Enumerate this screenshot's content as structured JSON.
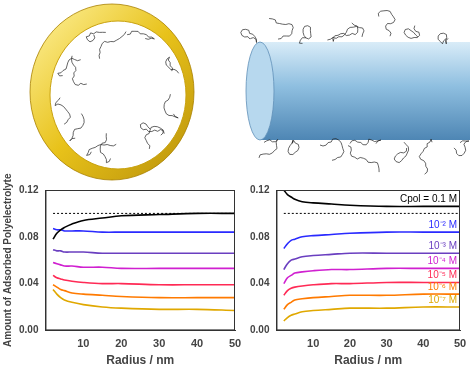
{
  "chart_data": [
    {
      "type": "line",
      "x_label": "Radius / nm",
      "y_label": "Amount of Adsorbed Polyelectrolyte",
      "x": [
        2,
        3,
        4,
        5,
        7,
        10,
        15,
        20,
        30,
        40,
        50
      ],
      "xlim": [
        0,
        50
      ],
      "xticks": [
        10,
        20,
        30,
        40,
        50
      ],
      "ylim": [
        0,
        0.12
      ],
      "yticks": [
        {
          "value": 0,
          "label": "0.00"
        },
        {
          "value": 0.04,
          "label": "0.04"
        },
        {
          "value": 0.08,
          "label": "0.08"
        },
        {
          "value": 0.12,
          "label": "0.12"
        }
      ],
      "grid": false,
      "series": [
        {
          "color": "#000000",
          "line_style": "dotted",
          "values": [
            0.1,
            0.1,
            0.1,
            0.1,
            0.1,
            0.1,
            0.1,
            0.1,
            0.1,
            0.1,
            0.1
          ]
        },
        {
          "color": "#000000",
          "values": [
            0.078,
            0.083,
            0.086,
            0.088,
            0.091,
            0.094,
            0.096,
            0.098,
            0.099,
            0.1,
            0.1
          ]
        },
        {
          "color": "#2a2aff",
          "values": [
            0.087,
            0.086,
            0.086,
            0.085,
            0.085,
            0.085,
            0.084,
            0.084,
            0.084,
            0.084,
            0.084
          ]
        },
        {
          "color": "#6a3fc0",
          "values": [
            0.069,
            0.068,
            0.068,
            0.067,
            0.067,
            0.067,
            0.066,
            0.066,
            0.066,
            0.066,
            0.066
          ]
        },
        {
          "color": "#d020d0",
          "values": [
            0.058,
            0.057,
            0.056,
            0.055,
            0.055,
            0.054,
            0.054,
            0.053,
            0.053,
            0.053,
            0.053
          ]
        },
        {
          "color": "#ff2a55",
          "values": [
            0.047,
            0.045,
            0.044,
            0.043,
            0.042,
            0.041,
            0.04,
            0.04,
            0.039,
            0.039,
            0.039
          ]
        },
        {
          "color": "#ff7a00",
          "values": [
            0.039,
            0.037,
            0.035,
            0.034,
            0.032,
            0.031,
            0.03,
            0.029,
            0.028,
            0.028,
            0.028
          ]
        },
        {
          "color": "#e0a800",
          "values": [
            0.035,
            0.031,
            0.028,
            0.026,
            0.024,
            0.022,
            0.02,
            0.019,
            0.018,
            0.018,
            0.017
          ]
        }
      ]
    },
    {
      "type": "line",
      "x_label": "Radius / nm",
      "x": [
        2,
        3,
        4,
        5,
        7,
        10,
        15,
        20,
        30,
        40,
        50
      ],
      "xlim": [
        0,
        50
      ],
      "xticks": [
        10,
        20,
        30,
        40,
        50
      ],
      "ylim": [
        0,
        0.12
      ],
      "yticks": [
        {
          "value": 0,
          "label": "0.00"
        },
        {
          "value": 0.04,
          "label": "0.04"
        },
        {
          "value": 0.08,
          "label": "0.08"
        },
        {
          "value": 0.12,
          "label": "0.12"
        }
      ],
      "grid": false,
      "series": [
        {
          "color": "#000000",
          "line_style": "dotted",
          "values": [
            0.1,
            0.1,
            0.1,
            0.1,
            0.1,
            0.1,
            0.1,
            0.1,
            0.1,
            0.1,
            0.1
          ]
        },
        {
          "name": "Cpol = 0.1 M",
          "color": "#000000",
          "values": [
            0.12,
            0.116,
            0.114,
            0.112,
            0.11,
            0.109,
            0.108,
            0.107,
            0.106,
            0.106,
            0.106
          ]
        },
        {
          "name": "10⁻² M",
          "color": "#2a2aff",
          "values": [
            0.07,
            0.074,
            0.077,
            0.078,
            0.08,
            0.081,
            0.082,
            0.083,
            0.084,
            0.084,
            0.084
          ]
        },
        {
          "name": "10⁻³ M",
          "color": "#6a3fc0",
          "values": [
            0.052,
            0.057,
            0.06,
            0.061,
            0.063,
            0.064,
            0.065,
            0.066,
            0.066,
            0.066,
            0.066
          ]
        },
        {
          "name": "10⁻⁴ M",
          "color": "#d020d0",
          "values": [
            0.04,
            0.045,
            0.047,
            0.049,
            0.05,
            0.051,
            0.052,
            0.052,
            0.053,
            0.053,
            0.053
          ]
        },
        {
          "name": "10⁻⁵ M",
          "color": "#ff2a55",
          "values": [
            0.03,
            0.034,
            0.036,
            0.037,
            0.038,
            0.039,
            0.04,
            0.04,
            0.041,
            0.041,
            0.041
          ]
        },
        {
          "name": "10⁻⁶ M",
          "color": "#ff7a00",
          "values": [
            0.018,
            0.022,
            0.024,
            0.026,
            0.027,
            0.028,
            0.029,
            0.03,
            0.03,
            0.031,
            0.031
          ]
        },
        {
          "name": "10⁻⁷ M",
          "color": "#e0a800",
          "values": [
            0.008,
            0.011,
            0.013,
            0.014,
            0.016,
            0.017,
            0.018,
            0.019,
            0.019,
            0.02,
            0.02
          ]
        }
      ]
    }
  ]
}
